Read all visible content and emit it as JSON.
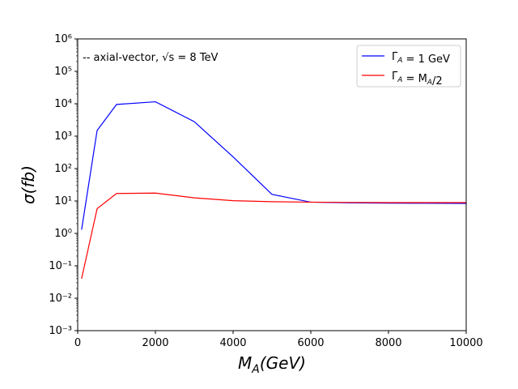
{
  "chart_data": {
    "type": "line",
    "xlabel": "M_A(GeV)",
    "ylabel": "σ(fb)",
    "xlim": [
      0,
      10000
    ],
    "ylim": [
      0.001,
      1000000
    ],
    "yscale": "log",
    "grid": false,
    "legend_position": "top-right",
    "annotation": "-- axial-vector, √s = 8 TeV",
    "xticks": [
      "0",
      "2000",
      "4000",
      "6000",
      "8000",
      "10000"
    ],
    "yticks": [
      "10⁻³",
      "10⁻²",
      "10⁻¹",
      "10⁰",
      "10¹",
      "10²",
      "10³",
      "10⁴",
      "10⁵",
      "10⁶"
    ],
    "series": [
      {
        "name": "Γ_A = 1 GeV",
        "color": "#0000ff",
        "x": [
          100,
          500,
          1000,
          2000,
          3000,
          4000,
          5000,
          6000,
          7000,
          8000,
          9000,
          10000
        ],
        "y": [
          1.3,
          1500,
          9500,
          11500,
          2800,
          230,
          16,
          9.2,
          8.8,
          8.6,
          8.5,
          8.4
        ]
      },
      {
        "name": "Γ_A = M_A/2",
        "color": "#ff0000",
        "x": [
          100,
          500,
          1000,
          2000,
          3000,
          4000,
          5000,
          6000,
          7000,
          8000,
          9000,
          10000
        ],
        "y": [
          0.04,
          5.8,
          17,
          17.5,
          12.5,
          10.2,
          9.5,
          9.2,
          9.0,
          8.9,
          8.9,
          8.9
        ]
      }
    ]
  }
}
